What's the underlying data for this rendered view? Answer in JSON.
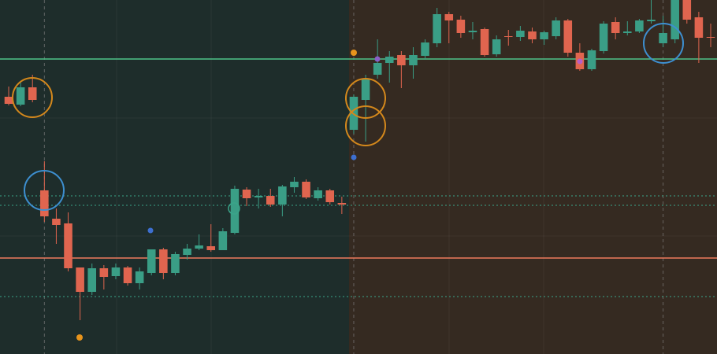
{
  "chart_data": {
    "type": "candlestick",
    "x": [
      1,
      2,
      3,
      4,
      5,
      6,
      7,
      8,
      9,
      10,
      11,
      12,
      13,
      14,
      15,
      16,
      17,
      18,
      19,
      20,
      21,
      22,
      23,
      24,
      25,
      26,
      27,
      28,
      29,
      30,
      31,
      32,
      33,
      34,
      35,
      36,
      37,
      38,
      39,
      40,
      41,
      42,
      43,
      44,
      45,
      46,
      47,
      48,
      49,
      50,
      51,
      52,
      53,
      54,
      55,
      56,
      57,
      58,
      59,
      60
    ],
    "open": [
      327,
      317,
      339,
      208,
      172,
      166,
      110,
      79,
      109,
      99,
      110,
      90,
      103,
      133,
      103,
      126,
      134,
      137,
      132,
      154,
      209,
      199,
      201,
      190,
      212,
      219,
      198,
      208,
      192,
      285,
      323,
      355,
      370,
      380,
      367,
      379,
      395,
      432,
      425,
      409,
      413,
      381,
      404,
      403,
      410,
      400,
      404,
      424,
      383,
      362,
      385,
      422,
      408,
      410,
      423,
      395,
      400,
      450,
      428,
      403
    ],
    "high": [
      340,
      345,
      355,
      245,
      185,
      180,
      110,
      115,
      113,
      115,
      112,
      110,
      133,
      135,
      130,
      140,
      152,
      165,
      160,
      214,
      212,
      210,
      210,
      215,
      225,
      222,
      212,
      210,
      200,
      330,
      355,
      400,
      385,
      385,
      390,
      400,
      440,
      435,
      430,
      422,
      415,
      405,
      412,
      417,
      415,
      411,
      428,
      426,
      395,
      388,
      423,
      428,
      423,
      426,
      450,
      430,
      450,
      450,
      435,
      420
    ],
    "low": [
      316,
      315,
      320,
      168,
      140,
      105,
      43,
      75,
      82,
      95,
      87,
      82,
      100,
      95,
      100,
      120,
      132,
      130,
      132,
      152,
      188,
      185,
      187,
      175,
      205,
      197,
      195,
      190,
      178,
      280,
      270,
      350,
      345,
      338,
      350,
      375,
      390,
      395,
      402,
      400,
      378,
      378,
      392,
      398,
      395,
      393,
      400,
      378,
      360,
      360,
      382,
      400,
      405,
      408,
      420,
      390,
      395,
      420,
      370,
      390
    ],
    "close": [
      318,
      339,
      323,
      175,
      164,
      109,
      79,
      109,
      98,
      110,
      90,
      105,
      133,
      103,
      127,
      134,
      138,
      132,
      156,
      210,
      198,
      201,
      190,
      213,
      219,
      199,
      208,
      193,
      190,
      327,
      350,
      370,
      378,
      367,
      380,
      396,
      432,
      424,
      408,
      411,
      380,
      400,
      403,
      411,
      400,
      409,
      424,
      383,
      362,
      386,
      420,
      408,
      410,
      424,
      425,
      408,
      450,
      425,
      402,
      402
    ],
    "xlim": [
      0.27,
      60.53
    ],
    "ylim": [
      0,
      450
    ],
    "up_color": "#3a9e86",
    "down_color": "#e0654f",
    "hlines": [
      {
        "value": 375,
        "color": "#4fc38a",
        "style": "solid"
      },
      {
        "value": 122,
        "color": "#ee7b5e",
        "style": "solid"
      },
      {
        "value": 201,
        "color": "#3aa58a",
        "style": "dotted"
      },
      {
        "value": 189,
        "color": "#3aa58a",
        "style": "dotted"
      },
      {
        "value": 73,
        "color": "#3aa58a",
        "style": "dotted"
      }
    ],
    "vlines": [
      4,
      30,
      56
    ]
  }
}
